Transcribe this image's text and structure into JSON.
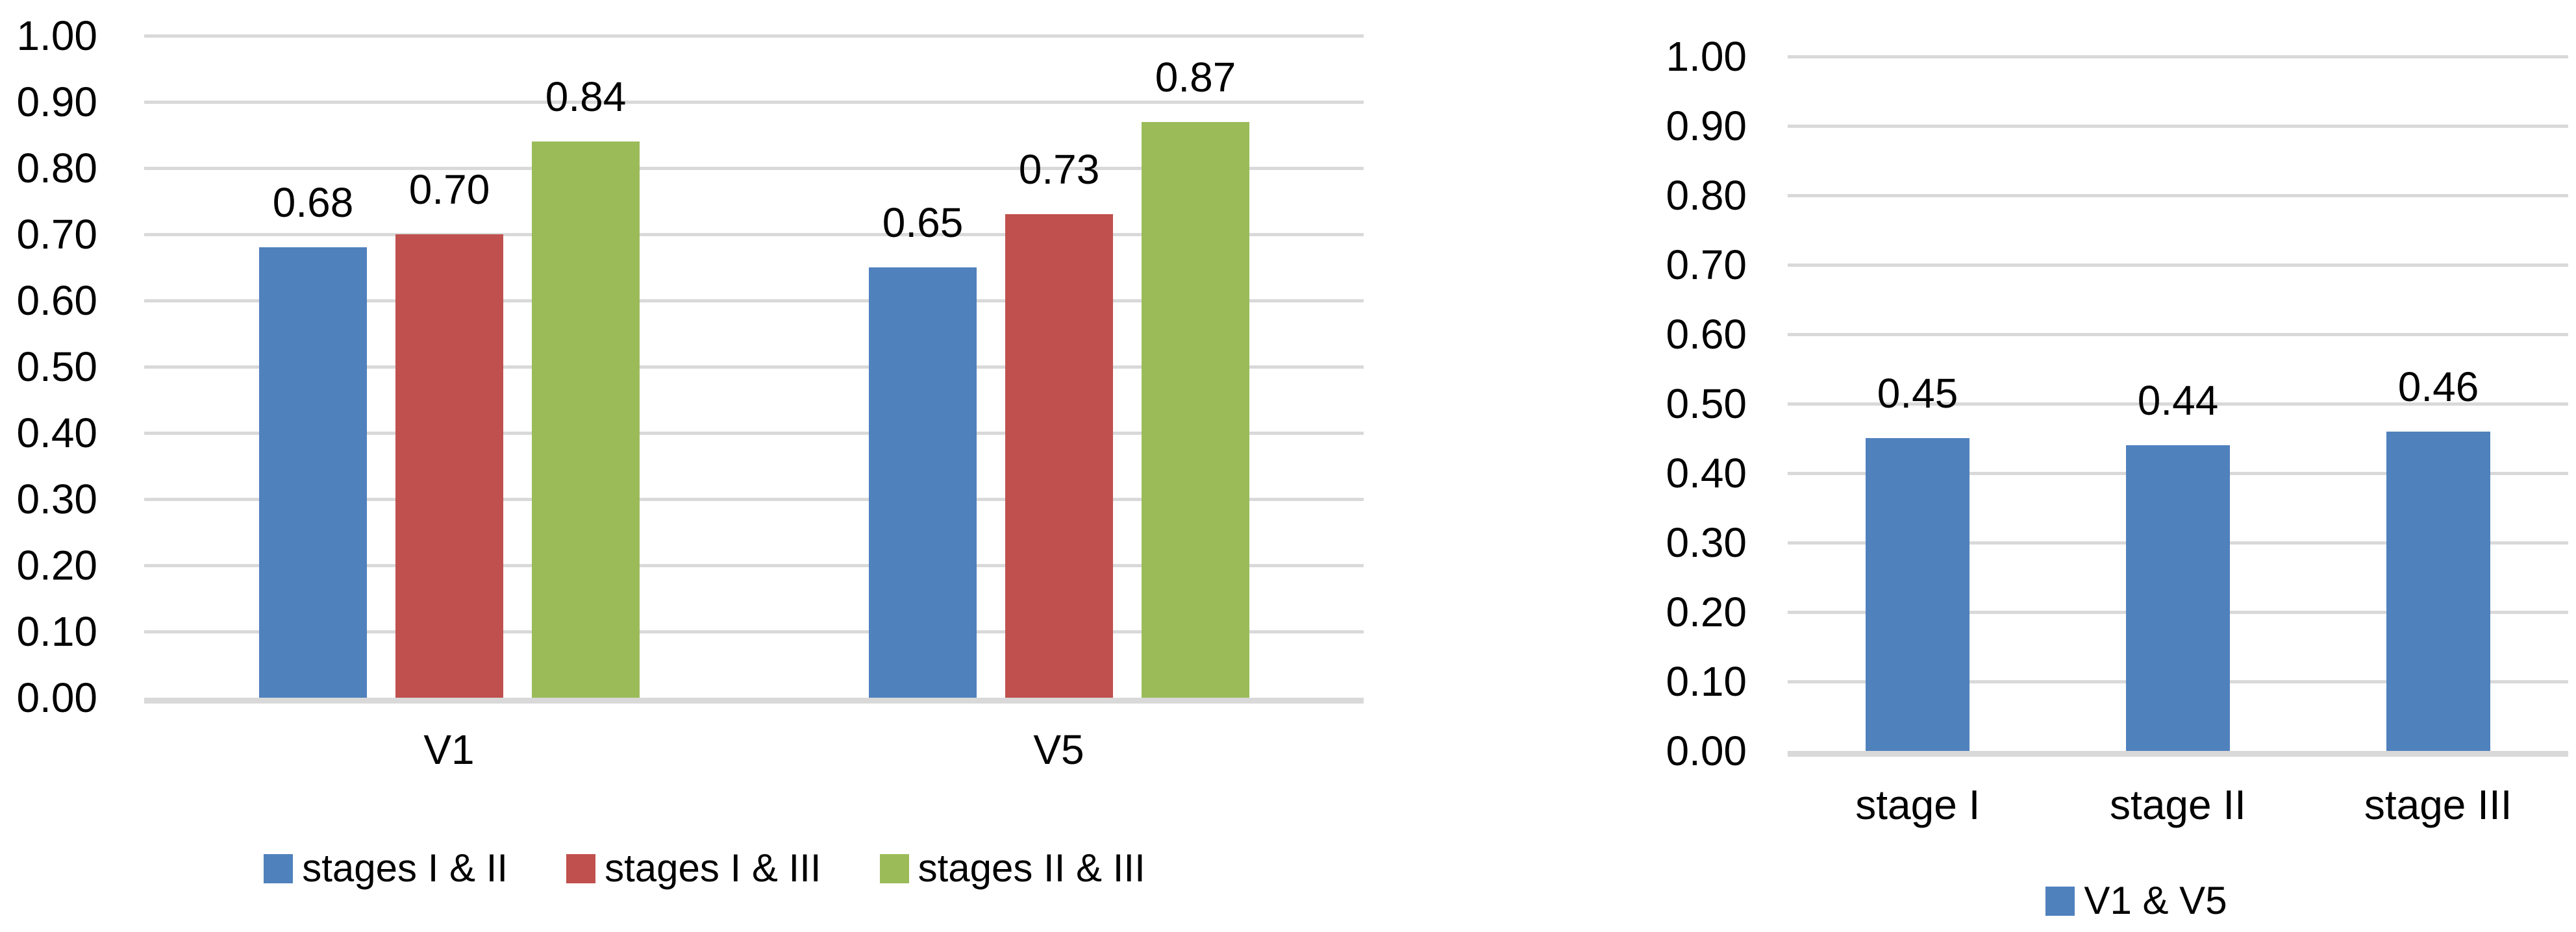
{
  "figure": {
    "background": "#FFFFFF",
    "text_color": "#000000",
    "gridline_color": "#D9D9D9",
    "axis_line_color": "#D9D9D9"
  },
  "chart_data": [
    {
      "id": "left-chart",
      "type": "bar",
      "title": "",
      "categories": [
        "V1",
        "V5"
      ],
      "series": [
        {
          "name": "stages I & II",
          "color": "#4F81BD",
          "values": [
            0.68,
            0.65
          ]
        },
        {
          "name": "stages I & III",
          "color": "#C0504D",
          "values": [
            0.7,
            0.73
          ]
        },
        {
          "name": "stages II & III",
          "color": "#9BBB59",
          "values": [
            0.84,
            0.87
          ]
        }
      ],
      "ylim": [
        0.0,
        1.0
      ],
      "ytick_step": 0.1,
      "ytick_labels": [
        "0.00",
        "0.10",
        "0.20",
        "0.30",
        "0.40",
        "0.50",
        "0.60",
        "0.70",
        "0.80",
        "0.90",
        "1.00"
      ],
      "grid": true,
      "data_labels": true,
      "data_label_format": "0.00",
      "legend_position": "bottom"
    },
    {
      "id": "right-chart",
      "type": "bar",
      "title": "",
      "categories": [
        "stage I",
        "stage II",
        "stage III"
      ],
      "series": [
        {
          "name": "V1 & V5",
          "color": "#4F81BD",
          "values": [
            0.45,
            0.44,
            0.46
          ]
        }
      ],
      "ylim": [
        0.0,
        1.0
      ],
      "ytick_step": 0.1,
      "ytick_labels": [
        "0.00",
        "0.10",
        "0.20",
        "0.30",
        "0.40",
        "0.50",
        "0.60",
        "0.70",
        "0.80",
        "0.90",
        "1.00"
      ],
      "grid": true,
      "data_labels": true,
      "data_label_format": "0.00",
      "legend_position": "bottom"
    }
  ]
}
